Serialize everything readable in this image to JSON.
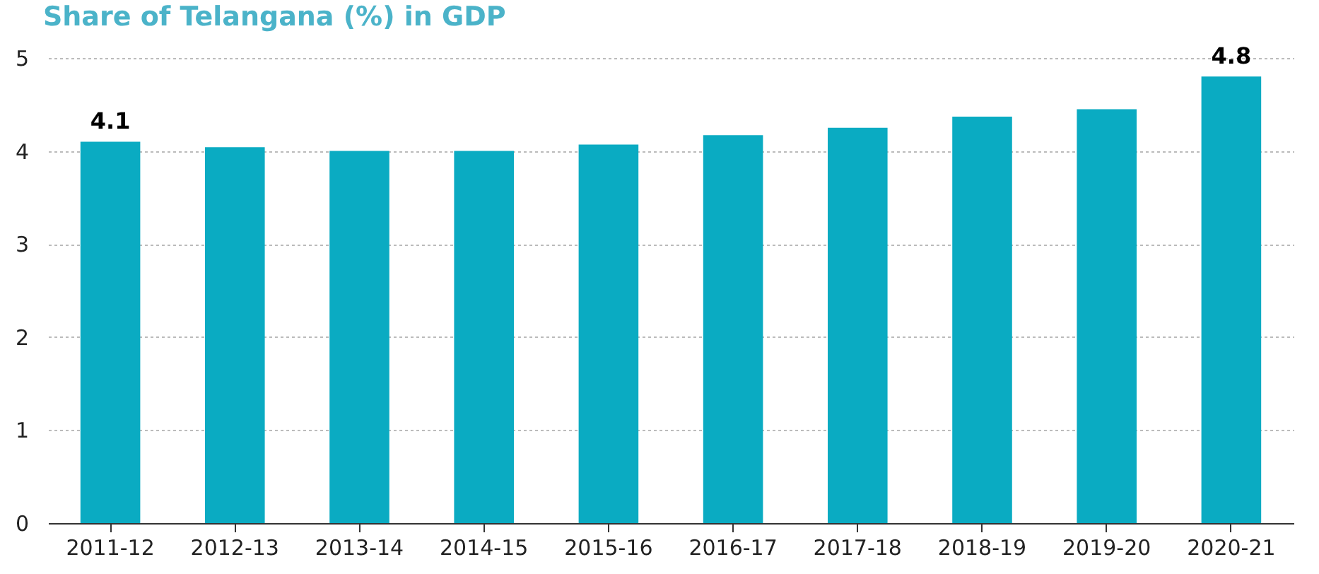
{
  "chart_data": {
    "type": "bar",
    "title": "Share of Telangana (%) in GDP",
    "categories": [
      "2011-12",
      "2012-13",
      "2013-14",
      "2014-15",
      "2015-16",
      "2016-17",
      "2017-18",
      "2018-19",
      "2019-20",
      "2020-21"
    ],
    "values": [
      4.1,
      4.04,
      4.0,
      4.0,
      4.07,
      4.17,
      4.25,
      4.37,
      4.45,
      4.8
    ],
    "value_labels": [
      "4.1",
      null,
      null,
      null,
      null,
      null,
      null,
      null,
      null,
      "4.8"
    ],
    "color": "#0aabc2",
    "ylim": [
      0,
      5
    ],
    "yticks": [
      0,
      1,
      2,
      3,
      4,
      5
    ],
    "grid": "y"
  }
}
